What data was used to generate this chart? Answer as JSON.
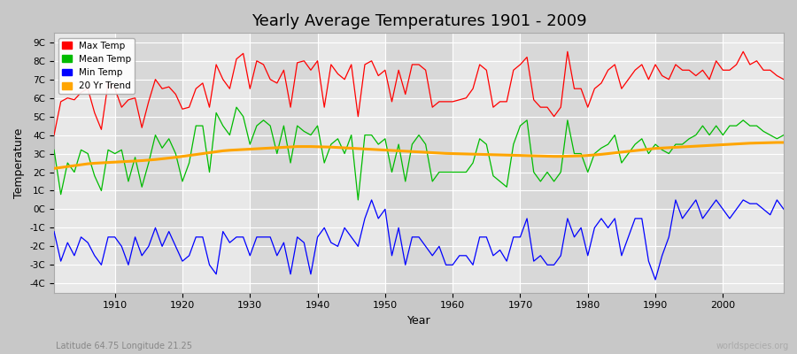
{
  "title": "Yearly Average Temperatures 1901 - 2009",
  "xlabel": "Year",
  "ylabel": "Temperature",
  "lat_lon_label": "Latitude 64.75 Longitude 21.25",
  "watermark": "worldspecies.org",
  "year_start": 1901,
  "year_end": 2009,
  "colors": {
    "max": "#ff0000",
    "mean": "#00bb00",
    "min": "#0000ff",
    "trend": "#ffa500",
    "fig_bg": "#c8c8c8",
    "plot_bg_light": "#e8e8e8",
    "plot_bg_dark": "#d8d8d8",
    "grid": "#ffffff"
  },
  "legend": {
    "max_label": "Max Temp",
    "mean_label": "Mean Temp",
    "min_label": "Min Temp",
    "trend_label": "20 Yr Trend"
  },
  "max_temp": [
    4.0,
    5.8,
    6.0,
    5.9,
    6.3,
    6.5,
    5.2,
    4.3,
    6.8,
    6.5,
    5.5,
    5.9,
    6.0,
    4.4,
    5.8,
    7.0,
    6.5,
    6.6,
    6.2,
    5.4,
    5.5,
    6.5,
    6.8,
    5.5,
    7.8,
    7.0,
    6.5,
    8.1,
    8.4,
    6.5,
    8.0,
    7.8,
    7.0,
    6.8,
    7.5,
    5.5,
    7.9,
    8.0,
    7.5,
    8.0,
    5.5,
    7.8,
    7.3,
    7.0,
    7.8,
    5.0,
    7.8,
    8.0,
    7.2,
    7.5,
    5.8,
    7.5,
    6.2,
    7.8,
    7.8,
    7.5,
    5.5,
    5.8,
    5.8,
    5.8,
    5.9,
    6.0,
    6.5,
    7.8,
    7.5,
    5.5,
    5.8,
    5.8,
    7.5,
    7.8,
    8.2,
    5.9,
    5.5,
    5.5,
    5.0,
    5.5,
    8.5,
    6.5,
    6.5,
    5.5,
    6.5,
    6.8,
    7.5,
    7.8,
    6.5,
    7.0,
    7.5,
    7.8,
    7.0,
    7.8,
    7.2,
    7.0,
    7.8,
    7.5,
    7.5,
    7.2,
    7.5,
    7.0,
    8.0,
    7.5,
    7.5,
    7.8,
    8.5,
    7.8,
    8.0,
    7.5,
    7.5,
    7.2,
    7.0
  ],
  "mean_temp": [
    3.2,
    0.8,
    2.5,
    2.0,
    3.2,
    3.0,
    1.8,
    1.0,
    3.2,
    3.0,
    3.2,
    1.5,
    2.8,
    1.2,
    2.5,
    4.0,
    3.3,
    3.8,
    3.0,
    1.5,
    2.5,
    4.5,
    4.5,
    2.0,
    5.2,
    4.5,
    4.0,
    5.5,
    5.0,
    3.5,
    4.5,
    4.8,
    4.5,
    3.0,
    4.5,
    2.5,
    4.5,
    4.2,
    4.0,
    4.5,
    2.5,
    3.5,
    3.8,
    3.0,
    4.0,
    0.5,
    4.0,
    4.0,
    3.5,
    3.8,
    2.0,
    3.5,
    1.5,
    3.5,
    4.0,
    3.5,
    1.5,
    2.0,
    2.0,
    2.0,
    2.0,
    2.0,
    2.5,
    3.8,
    3.5,
    1.8,
    1.5,
    1.2,
    3.5,
    4.5,
    4.8,
    2.0,
    1.5,
    2.0,
    1.5,
    2.0,
    4.8,
    3.0,
    3.0,
    2.0,
    3.0,
    3.3,
    3.5,
    4.0,
    2.5,
    3.0,
    3.5,
    3.8,
    3.0,
    3.5,
    3.2,
    3.0,
    3.5,
    3.5,
    3.8,
    4.0,
    4.5,
    4.0,
    4.5,
    4.0,
    4.5,
    4.5,
    4.8,
    4.5,
    4.5,
    4.2,
    4.0,
    3.8,
    4.0
  ],
  "min_temp": [
    -1.2,
    -2.8,
    -1.8,
    -2.5,
    -1.5,
    -1.8,
    -2.5,
    -3.0,
    -1.5,
    -1.5,
    -2.0,
    -3.0,
    -1.5,
    -2.5,
    -2.0,
    -1.0,
    -2.0,
    -1.2,
    -2.0,
    -2.8,
    -2.5,
    -1.5,
    -1.5,
    -3.0,
    -3.5,
    -1.2,
    -1.8,
    -1.5,
    -1.5,
    -2.5,
    -1.5,
    -1.5,
    -1.5,
    -2.5,
    -1.8,
    -3.5,
    -1.5,
    -1.8,
    -3.5,
    -1.5,
    -1.0,
    -1.8,
    -2.0,
    -1.0,
    -1.5,
    -2.0,
    -0.5,
    0.5,
    -0.5,
    0.0,
    -2.5,
    -1.0,
    -3.0,
    -1.5,
    -1.5,
    -2.0,
    -2.5,
    -2.0,
    -3.0,
    -3.0,
    -2.5,
    -2.5,
    -3.0,
    -1.5,
    -1.5,
    -2.5,
    -2.2,
    -2.8,
    -1.5,
    -1.5,
    -0.5,
    -2.8,
    -2.5,
    -3.0,
    -3.0,
    -2.5,
    -0.5,
    -1.5,
    -1.0,
    -2.5,
    -1.0,
    -0.5,
    -1.0,
    -0.5,
    -2.5,
    -1.5,
    -0.5,
    -0.5,
    -2.8,
    -3.8,
    -2.5,
    -1.5,
    0.5,
    -0.5,
    0.0,
    0.5,
    -0.5,
    0.0,
    0.5,
    0.0,
    -0.5,
    0.0,
    0.5,
    0.3,
    0.3,
    0.0,
    -0.3,
    0.5,
    0.0
  ],
  "trend_start_year": 1901,
  "trend_end_year": 2009,
  "trend_vals_full": [
    2.2,
    2.25,
    2.3,
    2.35,
    2.4,
    2.45,
    2.48,
    2.5,
    2.52,
    2.54,
    2.56,
    2.58,
    2.6,
    2.62,
    2.65,
    2.68,
    2.72,
    2.76,
    2.8,
    2.85,
    2.9,
    2.95,
    3.0,
    3.05,
    3.1,
    3.15,
    3.18,
    3.2,
    3.22,
    3.24,
    3.26,
    3.28,
    3.3,
    3.32,
    3.34,
    3.36,
    3.38,
    3.38,
    3.38,
    3.37,
    3.36,
    3.35,
    3.33,
    3.31,
    3.29,
    3.27,
    3.25,
    3.23,
    3.21,
    3.19,
    3.17,
    3.15,
    3.13,
    3.11,
    3.09,
    3.07,
    3.05,
    3.03,
    3.01,
    3.0,
    2.99,
    2.98,
    2.97,
    2.96,
    2.95,
    2.94,
    2.93,
    2.92,
    2.91,
    2.9,
    2.89,
    2.88,
    2.87,
    2.86,
    2.85,
    2.85,
    2.86,
    2.87,
    2.88,
    2.9,
    2.93,
    2.96,
    3.0,
    3.04,
    3.08,
    3.12,
    3.16,
    3.2,
    3.24,
    3.28,
    3.3,
    3.32,
    3.34,
    3.36,
    3.38,
    3.4,
    3.42,
    3.44,
    3.46,
    3.48,
    3.5,
    3.52,
    3.54,
    3.56,
    3.57,
    3.58,
    3.59,
    3.6,
    3.6
  ],
  "yticks": [
    -4,
    -3,
    -2,
    -1,
    0,
    1,
    2,
    3,
    4,
    5,
    6,
    7,
    8,
    9
  ],
  "ytick_labels": [
    "-4C",
    "-3C",
    "-2C",
    "-1C",
    "0C",
    "1C",
    "2C",
    "3C",
    "4C",
    "5C",
    "6C",
    "7C",
    "8C",
    "9C"
  ],
  "xticks": [
    1910,
    1920,
    1930,
    1940,
    1950,
    1960,
    1970,
    1980,
    1990,
    2000
  ],
  "xlim": [
    1901,
    2009
  ],
  "ylim_bottom": -4.5,
  "ylim_top": 9.5
}
